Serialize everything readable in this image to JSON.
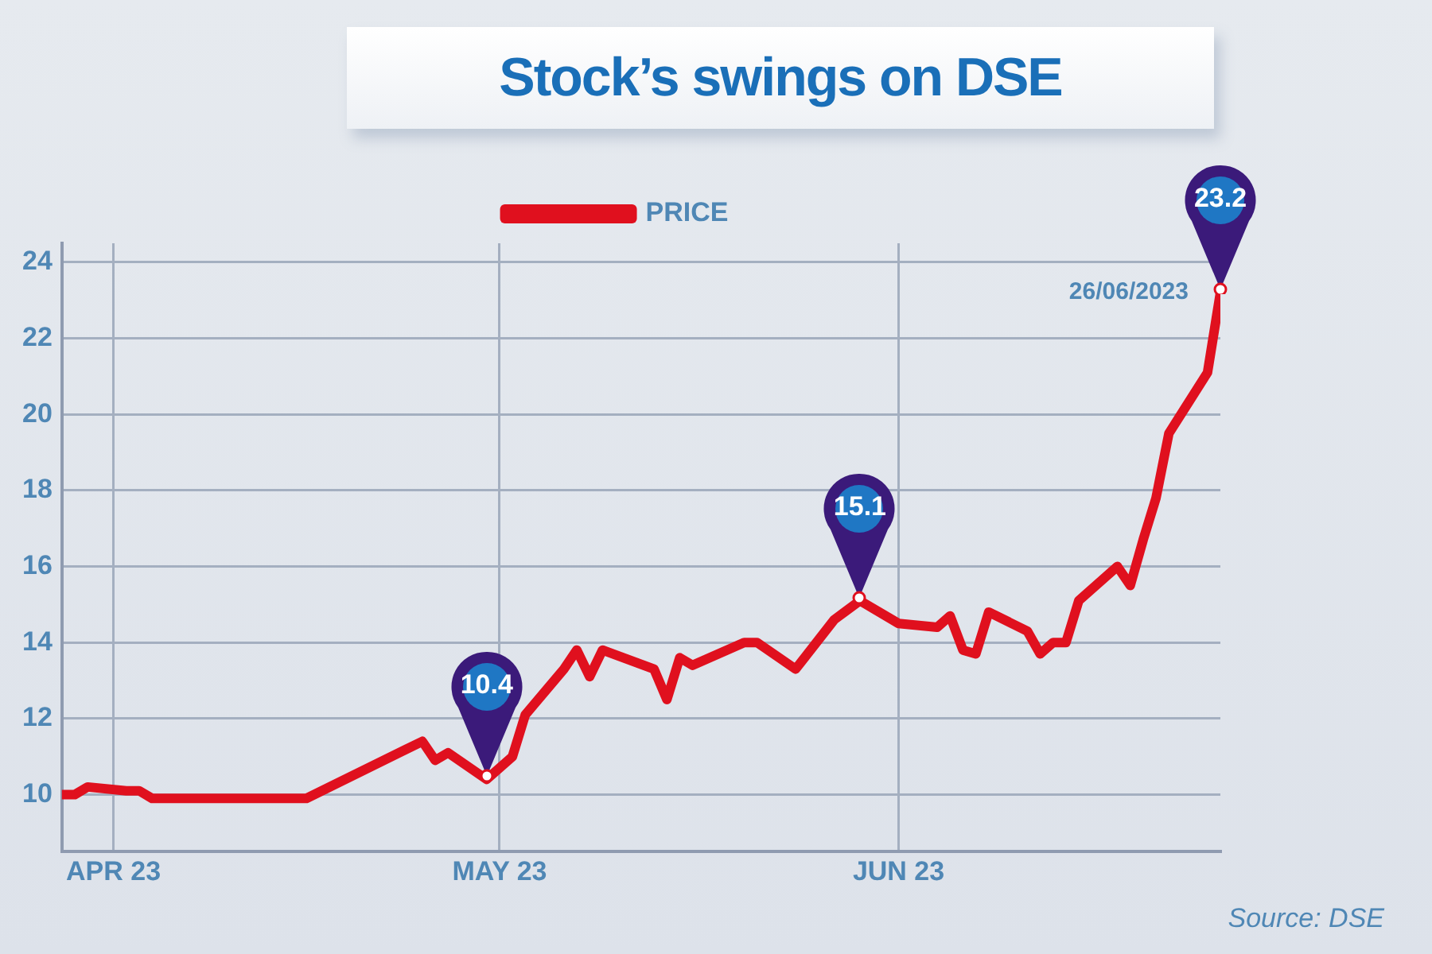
{
  "chart_data": {
    "type": "line",
    "title": "Stock’s swings on DSE",
    "xlim": [
      "2023-03-28",
      "2023-06-26"
    ],
    "xticks": [
      {
        "value": "2023-04-01",
        "label": "APR 23"
      },
      {
        "value": "2023-05-01",
        "label": "MAY 23"
      },
      {
        "value": "2023-06-01",
        "label": "JUN 23"
      }
    ],
    "ylim": [
      8.5,
      24.5
    ],
    "yticks": [
      10,
      12,
      14,
      16,
      18,
      20,
      22,
      24
    ],
    "grid": true,
    "legend": "top",
    "marker": "none",
    "line_style": "solid",
    "series": [
      {
        "name": "PRICE",
        "color": "#e0101e",
        "x": [
          "2023-03-28",
          "2023-03-29",
          "2023-03-30",
          "2023-04-02",
          "2023-04-03",
          "2023-04-04",
          "2023-04-16",
          "2023-04-25",
          "2023-04-26",
          "2023-04-27",
          "2023-04-30",
          "2023-05-02",
          "2023-05-03",
          "2023-05-06",
          "2023-05-07",
          "2023-05-08",
          "2023-05-09",
          "2023-05-13",
          "2023-05-14",
          "2023-05-15",
          "2023-05-16",
          "2023-05-20",
          "2023-05-21",
          "2023-05-24",
          "2023-05-27",
          "2023-05-29",
          "2023-06-01",
          "2023-06-04",
          "2023-06-05",
          "2023-06-06",
          "2023-06-07",
          "2023-06-08",
          "2023-06-11",
          "2023-06-12",
          "2023-06-13",
          "2023-06-14",
          "2023-06-15",
          "2023-06-18",
          "2023-06-19",
          "2023-06-20",
          "2023-06-21",
          "2023-06-22",
          "2023-06-25",
          "2023-06-26"
        ],
        "values": [
          10.0,
          10.0,
          10.2,
          10.1,
          10.1,
          9.9,
          9.9,
          11.4,
          10.9,
          11.1,
          10.4,
          11.0,
          12.1,
          13.3,
          13.8,
          13.1,
          13.8,
          13.3,
          12.5,
          13.6,
          13.4,
          14.0,
          14.0,
          13.3,
          14.6,
          15.1,
          14.5,
          14.4,
          14.7,
          13.8,
          13.7,
          14.8,
          14.3,
          13.7,
          14.0,
          14.0,
          15.1,
          16.0,
          15.5,
          16.7,
          17.8,
          19.5,
          21.1,
          23.2
        ]
      }
    ],
    "annotations": [
      {
        "text": "10.4",
        "x": "2023-04-30",
        "y": 10.4
      },
      {
        "text": "15.1",
        "x": "2023-05-29",
        "y": 15.1
      },
      {
        "text": "23.2",
        "x": "2023-06-26",
        "y": 23.2
      },
      {
        "text": "26/06/2023",
        "x": "2023-06-26",
        "y": 23.2
      },
      "Source: DSE"
    ]
  }
}
